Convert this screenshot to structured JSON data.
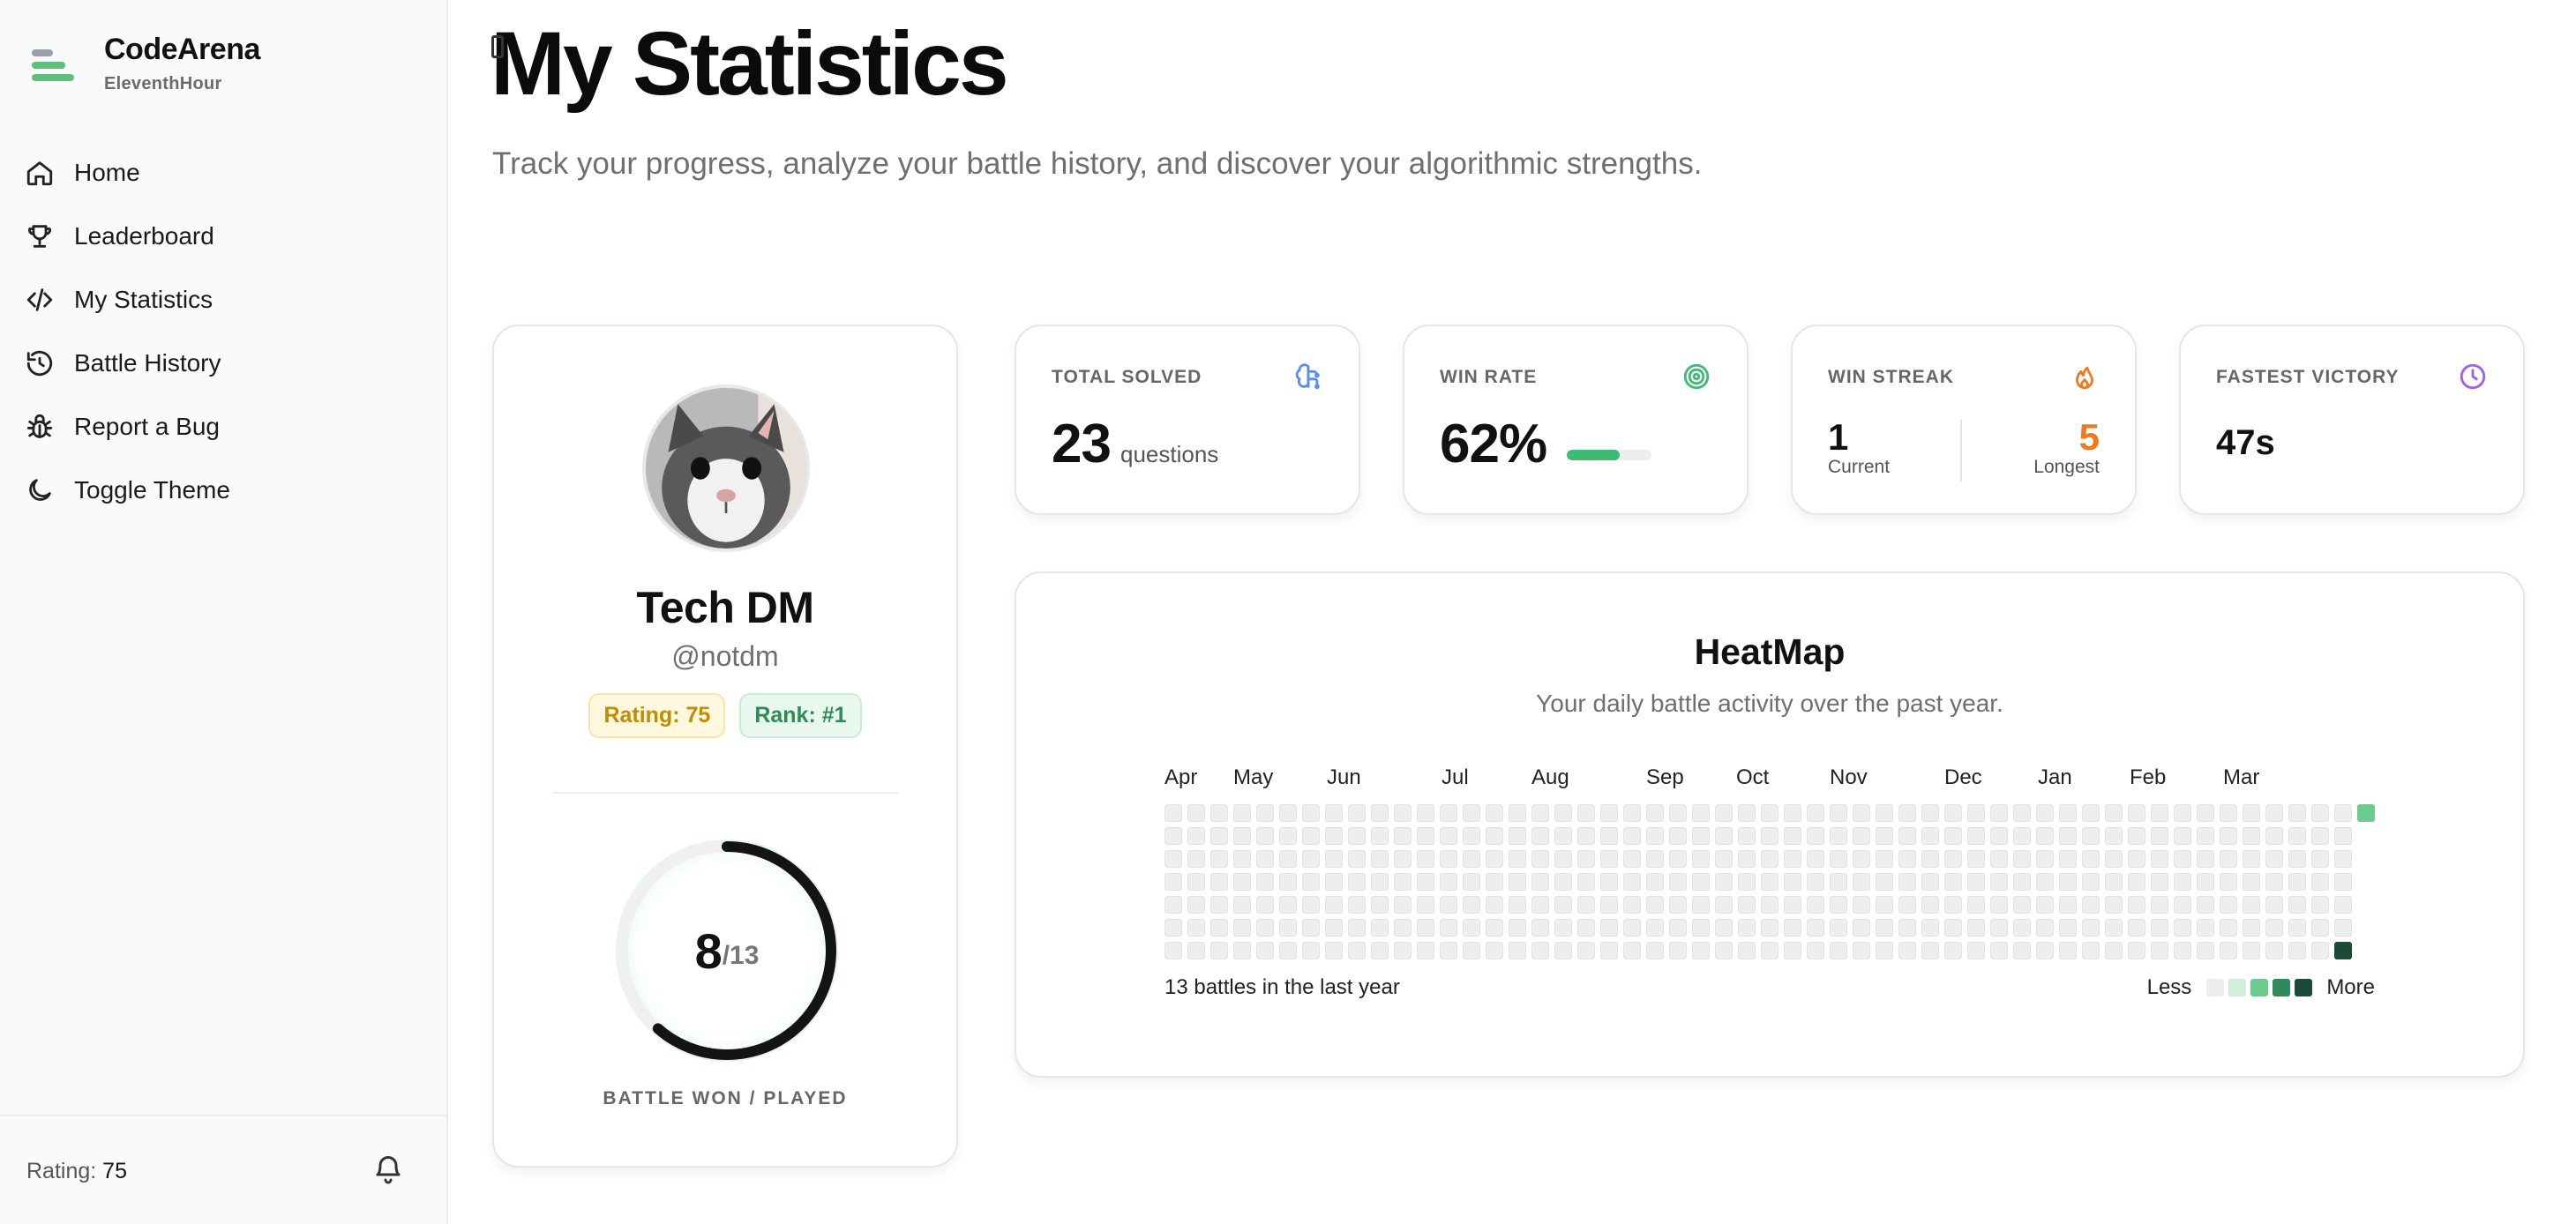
{
  "sidebar": {
    "brand_name": "CodeArena",
    "brand_sub": "EleventhHour",
    "items": [
      {
        "label": "Home",
        "icon": "home-icon"
      },
      {
        "label": "Leaderboard",
        "icon": "trophy-icon"
      },
      {
        "label": "My Statistics",
        "icon": "code-icon"
      },
      {
        "label": "Battle History",
        "icon": "history-icon"
      },
      {
        "label": "Report a Bug",
        "icon": "bug-icon"
      },
      {
        "label": "Toggle Theme",
        "icon": "moon-icon"
      }
    ],
    "footer": {
      "rating_label": "Rating:",
      "rating_value": "75",
      "icon": "bell-icon"
    }
  },
  "header": {
    "title": "My Statistics",
    "subtitle": "Track your progress, analyze your battle history, and discover your algorithmic strengths."
  },
  "profile": {
    "name": "Tech DM",
    "handle": "@notdm",
    "rating_badge": "Rating: 75",
    "rank_badge": "Rank: #1",
    "won": "8",
    "played": "/13",
    "won_fraction": 0.615,
    "ring_label": "BATTLE WON / PLAYED"
  },
  "stats": {
    "total_solved": {
      "label": "TOTAL SOLVED",
      "value": "23",
      "unit": "questions",
      "icon": "brain-icon",
      "color": "#5b8def"
    },
    "win_rate": {
      "label": "WIN RATE",
      "value": "62%",
      "fraction": 0.62,
      "icon": "target-icon",
      "color": "#3dbb72"
    },
    "win_streak": {
      "label": "WIN STREAK",
      "current": "1",
      "current_label": "Current",
      "longest": "5",
      "longest_label": "Longest",
      "icon": "flame-icon",
      "color": "#ee7a1f"
    },
    "fastest": {
      "label": "FASTEST VICTORY",
      "value": "47s",
      "icon": "clock-icon",
      "color": "#a25ee8"
    }
  },
  "heatmap": {
    "title": "HeatMap",
    "subtitle": "Your daily battle activity over the past year.",
    "months": [
      "Apr",
      "May",
      "Jun",
      "Jul",
      "Aug",
      "Sep",
      "Oct",
      "Nov",
      "Dec",
      "Jan",
      "Feb",
      "Mar"
    ],
    "weeks": 53,
    "active_cells": [
      {
        "week": 52,
        "day": 0,
        "level": 2
      },
      {
        "week": 51,
        "day": 6,
        "level": 4
      }
    ],
    "count_text": "13 battles in the last year",
    "legend_less": "Less",
    "legend_more": "More",
    "level_colors": [
      "#eeeeee",
      "#cfeedb",
      "#6ccb8f",
      "#2f8a5a",
      "#1d4a37"
    ]
  }
}
